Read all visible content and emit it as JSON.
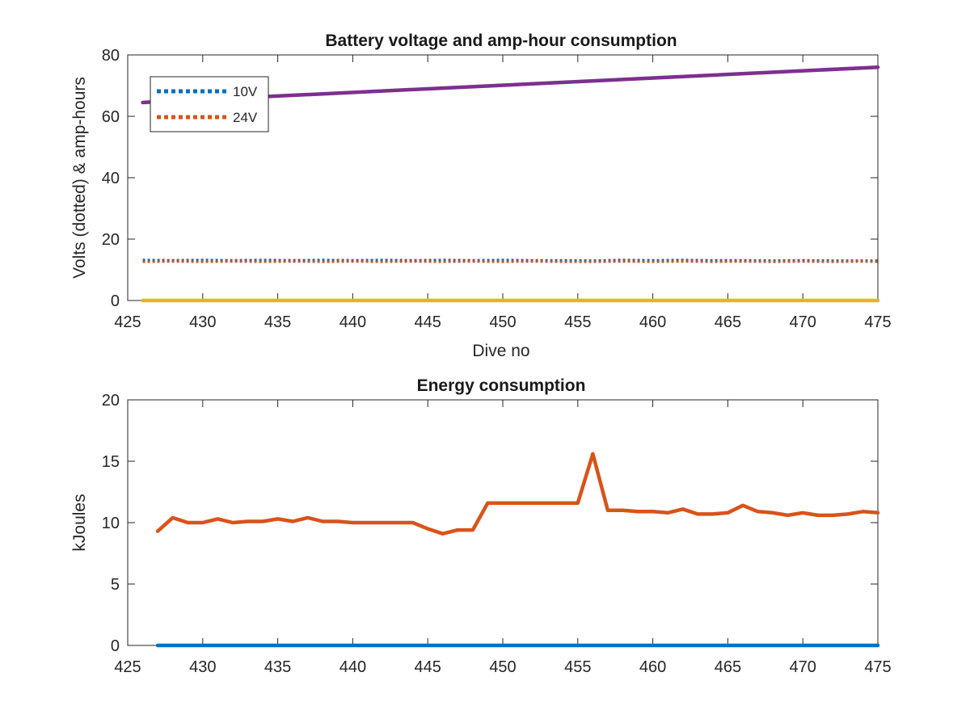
{
  "chart_data": [
    {
      "type": "line",
      "title": "Battery voltage and amp-hour consumption",
      "xlabel": "Dive no",
      "ylabel": "Volts (dotted) & amp-hours",
      "xlim": [
        425,
        475
      ],
      "ylim": [
        0,
        80
      ],
      "xticks": [
        425,
        430,
        435,
        440,
        445,
        450,
        455,
        460,
        465,
        470,
        475
      ],
      "yticks": [
        0,
        20,
        40,
        60,
        80
      ],
      "grid": false,
      "legend_position": "top-left",
      "legend": [
        "10V",
        "24V"
      ],
      "series": [
        {
          "name": "10V",
          "style": "dotted",
          "color": "#0072BD",
          "x": [
            426,
            428,
            430,
            432,
            434,
            436,
            438,
            440,
            442,
            444,
            446,
            448,
            450,
            452,
            454,
            456,
            458,
            460,
            462,
            464,
            466,
            468,
            470,
            472,
            474,
            475
          ],
          "y": [
            13.2,
            13.1,
            13.2,
            13.1,
            13.2,
            13.1,
            13.2,
            13.1,
            13.2,
            13.1,
            13.2,
            13.1,
            13.2,
            13.1,
            13.1,
            13.0,
            13.2,
            13.1,
            13.2,
            13.1,
            13.1,
            13.0,
            13.1,
            13.0,
            13.0,
            13.0
          ]
        },
        {
          "name": "24V",
          "style": "dotted",
          "color": "#D95319",
          "x": [
            426,
            428,
            430,
            432,
            434,
            436,
            438,
            440,
            442,
            444,
            446,
            448,
            450,
            452,
            454,
            456,
            458,
            460,
            462,
            464,
            466,
            468,
            470,
            472,
            474,
            475
          ],
          "y": [
            12.6,
            12.7,
            12.6,
            12.7,
            12.6,
            12.7,
            12.6,
            12.7,
            12.6,
            12.7,
            12.6,
            12.7,
            12.6,
            12.7,
            12.6,
            12.6,
            12.7,
            12.6,
            12.7,
            12.6,
            12.7,
            12.6,
            12.7,
            12.6,
            12.7,
            12.6
          ]
        },
        {
          "style": "solid",
          "color": "#7E2F8E",
          "x": [
            426,
            475
          ],
          "y": [
            64.5,
            76.0
          ]
        },
        {
          "style": "solid",
          "color": "#EDB120",
          "x": [
            426,
            475
          ],
          "y": [
            0,
            0
          ]
        }
      ]
    },
    {
      "type": "line",
      "title": "Energy consumption",
      "xlabel": "",
      "ylabel": "kJoules",
      "xlim": [
        425,
        475
      ],
      "ylim": [
        0,
        20
      ],
      "xticks": [
        425,
        430,
        435,
        440,
        445,
        450,
        455,
        460,
        465,
        470,
        475
      ],
      "yticks": [
        0,
        5,
        10,
        15,
        20
      ],
      "grid": false,
      "series": [
        {
          "style": "solid",
          "color": "#0072BD",
          "x": [
            427,
            475
          ],
          "y": [
            0,
            0
          ]
        },
        {
          "style": "solid",
          "color": "#D95319",
          "x": [
            427,
            428,
            429,
            430,
            431,
            432,
            433,
            434,
            435,
            436,
            437,
            438,
            439,
            440,
            441,
            442,
            443,
            444,
            445,
            446,
            447,
            448,
            449,
            450,
            451,
            452,
            453,
            454,
            455,
            456,
            457,
            458,
            459,
            460,
            461,
            462,
            463,
            464,
            465,
            466,
            467,
            468,
            469,
            470,
            471,
            472,
            473,
            474,
            475
          ],
          "y": [
            9.3,
            10.4,
            10.0,
            10.0,
            10.3,
            10.0,
            10.1,
            10.1,
            10.3,
            10.1,
            10.4,
            10.1,
            10.1,
            10.0,
            10.0,
            10.0,
            10.0,
            10.0,
            9.5,
            9.1,
            9.4,
            9.4,
            11.6,
            11.6,
            11.6,
            11.6,
            11.6,
            11.6,
            11.6,
            15.6,
            11.0,
            11.0,
            10.9,
            10.9,
            10.8,
            11.1,
            10.7,
            10.7,
            10.8,
            11.4,
            10.9,
            10.8,
            10.6,
            10.8,
            10.6,
            10.6,
            10.7,
            10.9,
            10.8
          ]
        }
      ]
    }
  ]
}
